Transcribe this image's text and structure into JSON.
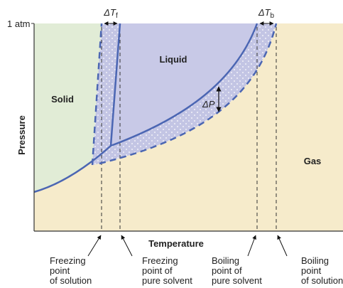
{
  "title_axis": {
    "y": "Pressure",
    "x": "Temperature",
    "y_tick": "1 atm"
  },
  "regions": {
    "solid": "Solid",
    "liquid": "Liquid",
    "gas": "Gas"
  },
  "annotations": {
    "delta_tf": {
      "symbol": "ΔT",
      "sub": "f"
    },
    "delta_tb": {
      "symbol": "ΔT",
      "sub": "b"
    },
    "delta_p": "ΔP"
  },
  "points": [
    {
      "lines": [
        "Freezing",
        "point",
        "of solution"
      ]
    },
    {
      "lines": [
        "Freezing",
        "point of",
        "pure solvent"
      ]
    },
    {
      "lines": [
        "Boiling",
        "point of",
        "pure solvent"
      ]
    },
    {
      "lines": [
        "Boiling",
        "point",
        "of solution"
      ]
    }
  ]
}
